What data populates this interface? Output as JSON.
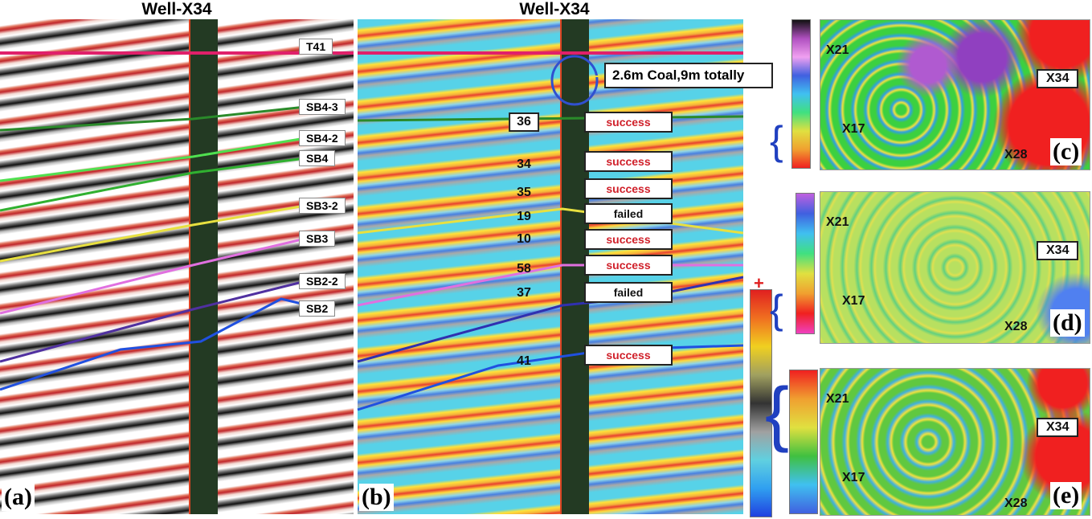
{
  "panels": [
    {
      "label": "(a)",
      "title": "Well-X34",
      "horizons": [
        "T41",
        "SB4-3",
        "SB4-2",
        "SB4",
        "SB3-2",
        "SB3",
        "SB2-2",
        "SB2"
      ]
    },
    {
      "label": "(b)",
      "title": "Well-X34",
      "callout": "2.6m Coal,9m totally",
      "colorbar_sign": "+",
      "tests": [
        {
          "number": "36",
          "result": "success"
        },
        {
          "number": "34",
          "result": "success"
        },
        {
          "number": "35",
          "result": "success"
        },
        {
          "number": "19",
          "result": "failed"
        },
        {
          "number": "10",
          "result": "success"
        },
        {
          "number": "58",
          "result": "success"
        },
        {
          "number": "37",
          "result": "failed"
        },
        {
          "number": "41",
          "result": "success"
        }
      ]
    },
    {
      "label": "(c)",
      "wells": [
        "X21",
        "X17",
        "X28",
        "X34"
      ]
    },
    {
      "label": "(d)",
      "wells": [
        "X21",
        "X17",
        "X28",
        "X34"
      ]
    },
    {
      "label": "(e)",
      "wells": [
        "X21",
        "X17",
        "X28",
        "X34"
      ]
    }
  ]
}
